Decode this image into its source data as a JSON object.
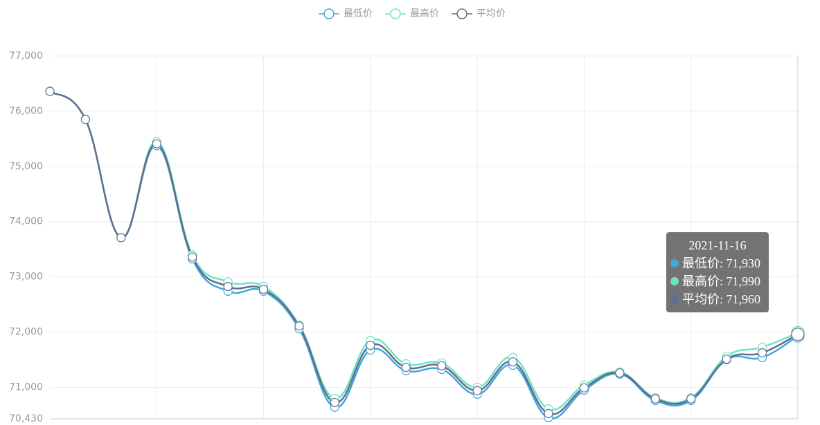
{
  "chart_data": {
    "type": "line",
    "categories": [
      null,
      null,
      null,
      null,
      null,
      null,
      null,
      null,
      null,
      null,
      null,
      null,
      null,
      null,
      null,
      null,
      null,
      null,
      null,
      null,
      null,
      "2021-11-16"
    ],
    "series": [
      {
        "name": "最低价",
        "color": "#3fa7dc",
        "values": [
          76360,
          75850,
          73710,
          75375,
          73325,
          72740,
          72740,
          72060,
          70640,
          71675,
          71300,
          71325,
          70875,
          71400,
          70450,
          70950,
          71240,
          70760,
          70760,
          71500,
          71540,
          71930
        ]
      },
      {
        "name": "最高价",
        "color": "#6be6c1",
        "values": [
          76360,
          75850,
          73710,
          75450,
          73400,
          72910,
          72825,
          72125,
          70800,
          71850,
          71425,
          71440,
          71000,
          71540,
          70610,
          71040,
          71275,
          70810,
          70810,
          71560,
          71725,
          71990
        ]
      },
      {
        "name": "平均价",
        "color": "#626c91",
        "values": [
          76360,
          75850,
          73710,
          75410,
          73360,
          72825,
          72775,
          72110,
          70725,
          71760,
          71360,
          71390,
          70940,
          71460,
          70525,
          70990,
          71260,
          70790,
          70790,
          71510,
          71625,
          71960
        ]
      }
    ],
    "ylim": [
      70430,
      77000
    ],
    "yticks": [
      {
        "value": 70430,
        "label": "70,430"
      },
      {
        "value": 71000,
        "label": "71,000"
      },
      {
        "value": 72000,
        "label": "72,000"
      },
      {
        "value": 73000,
        "label": "73,000"
      },
      {
        "value": 74000,
        "label": "74,000"
      },
      {
        "value": 75000,
        "label": "75,000"
      },
      {
        "value": 76000,
        "label": "76,000"
      },
      {
        "value": 77000,
        "label": "77,000"
      }
    ],
    "grid": true,
    "legend": "top",
    "tooltip": [
      "最低价: 71,930",
      "最高价: 71,990",
      "平均价: 71,960"
    ]
  }
}
